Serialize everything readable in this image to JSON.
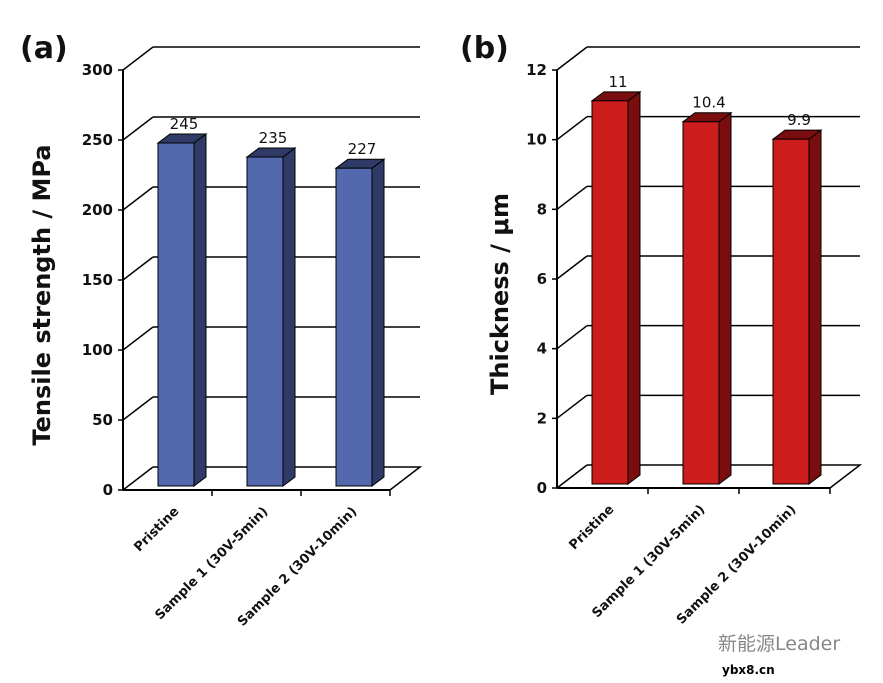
{
  "chart_data": [
    {
      "type": "bar",
      "panel_label": "(a)",
      "ylabel": "Tensile strength / MPa",
      "categories": [
        "Pristine",
        "Sample 1 (30V-5min)",
        "Sample 2 (30V-10min)"
      ],
      "values": [
        245,
        235,
        227
      ],
      "data_labels": [
        "245",
        "235",
        "227"
      ],
      "ylim": [
        0,
        300
      ],
      "yticks": [
        0,
        50,
        100,
        150,
        200,
        250,
        300
      ],
      "grid": true,
      "style": "3d",
      "color": "#5468ad",
      "side_color": "#2f3b66"
    },
    {
      "type": "bar",
      "panel_label": "(b)",
      "ylabel": "Thickness / μm",
      "categories": [
        "Pristine",
        "Sample 1 (30V-5min)",
        "Sample 2 (30V-10min)"
      ],
      "values": [
        11,
        10.4,
        9.9
      ],
      "data_labels": [
        "11",
        "10.4",
        "9.9"
      ],
      "ylim": [
        0,
        12
      ],
      "yticks": [
        0,
        2,
        4,
        6,
        8,
        10,
        12
      ],
      "grid": true,
      "style": "3d",
      "color": "#cc1c1c",
      "side_color": "#7a0e0e"
    }
  ],
  "watermark": {
    "text": "新能源Leader",
    "sub": "ybx8.cn"
  }
}
